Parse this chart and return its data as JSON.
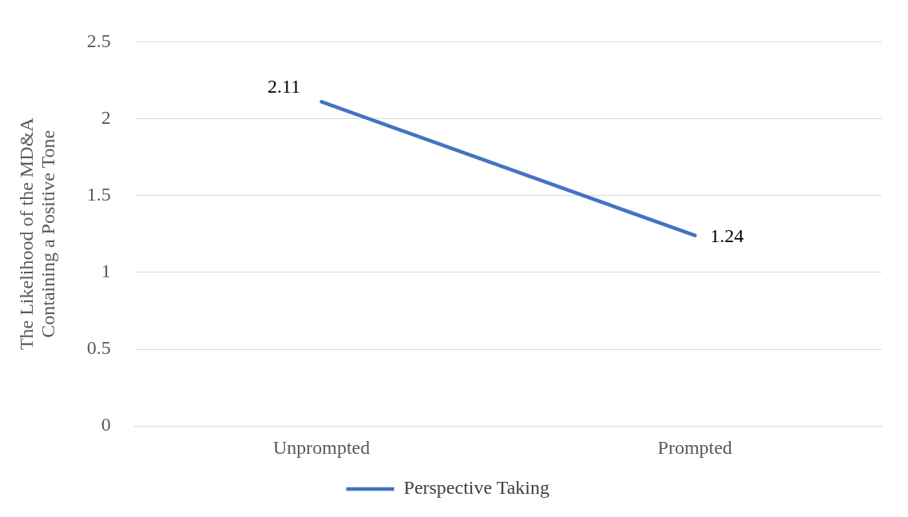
{
  "chart_data": {
    "type": "line",
    "ylabel": "The Likelihood of the MD&A Containing a Positive Tone",
    "categories": [
      "Unprompted",
      "Prompted"
    ],
    "series": [
      {
        "name": "Perspective Taking",
        "color": "#4472c4",
        "values": [
          2.11,
          1.24
        ]
      }
    ],
    "ylim": [
      0,
      2.5
    ],
    "yticks": [
      0,
      0.5,
      1,
      1.5,
      2,
      2.5
    ],
    "grid": "y",
    "legend": "bottom",
    "marker": "none",
    "line_style": "solid",
    "data_labels": true
  }
}
